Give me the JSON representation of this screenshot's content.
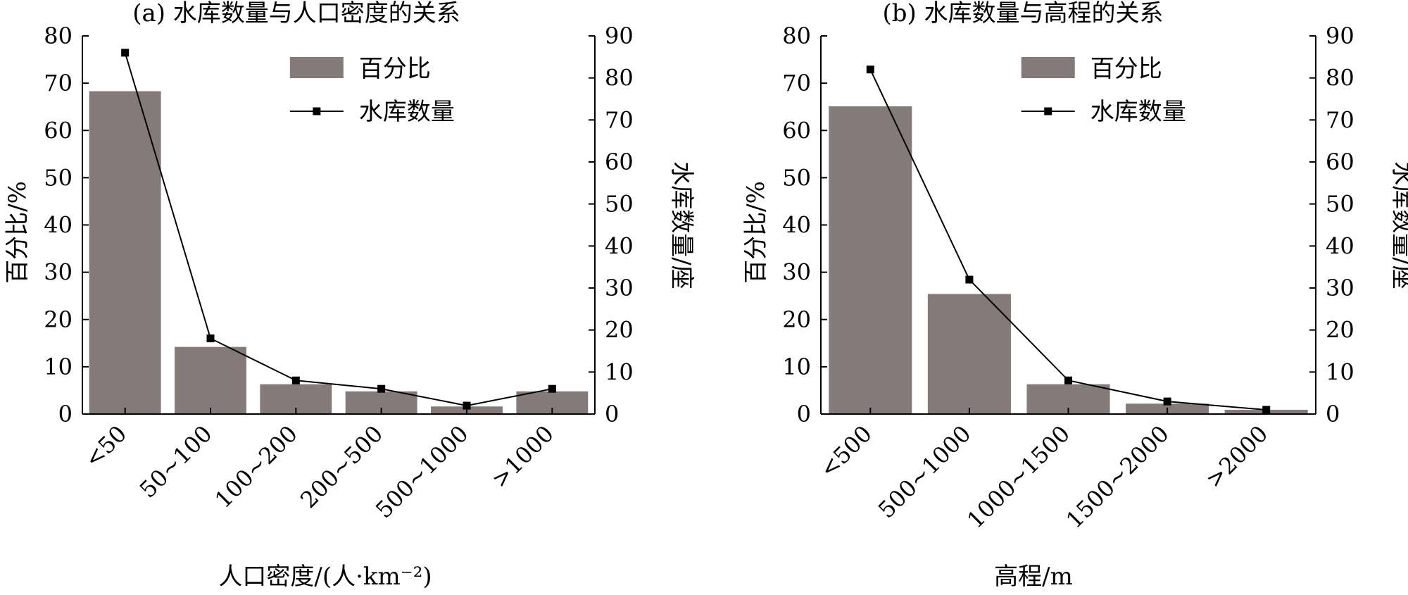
{
  "chart_data": [
    {
      "type": "bar",
      "title": "(a) 水库数量与人口密度的关系",
      "xlabel": "人口密度/(人·km⁻²)",
      "ylabel": "百分比/%",
      "ylabel_right": "水库数量/座",
      "categories": [
        "<50",
        "50~100",
        "100~200",
        "200~500",
        "500~1000",
        ">1000"
      ],
      "ylim": [
        0,
        80
      ],
      "ylim_right": [
        0,
        90
      ],
      "yticks": [
        "0",
        "10",
        "20",
        "30",
        "40",
        "50",
        "60",
        "70",
        "80"
      ],
      "yticks_right": [
        "0",
        "10",
        "20",
        "30",
        "40",
        "50",
        "60",
        "70",
        "80",
        "90"
      ],
      "legend_position": "top-right",
      "series": [
        {
          "name": "百分比",
          "kind": "bar",
          "axis": "left",
          "color": "#857a7a",
          "values": [
            68.3,
            14.2,
            6.3,
            4.8,
            1.6,
            4.8
          ]
        },
        {
          "name": "水库数量",
          "kind": "line",
          "axis": "right",
          "color": "#000000",
          "marker": "square",
          "values": [
            86,
            18,
            8,
            6,
            2,
            6
          ]
        }
      ]
    },
    {
      "type": "bar",
      "title": "(b) 水库数量与高程的关系",
      "xlabel": "高程/m",
      "ylabel": "百分比/%",
      "ylabel_right": "水库数量/座",
      "categories": [
        "<500",
        "500~1000",
        "1000~1500",
        "1500~2000",
        ">2000"
      ],
      "ylim": [
        0,
        80
      ],
      "ylim_right": [
        0,
        90
      ],
      "yticks": [
        "0",
        "10",
        "20",
        "30",
        "40",
        "50",
        "60",
        "70",
        "80"
      ],
      "yticks_right": [
        "0",
        "10",
        "20",
        "30",
        "40",
        "50",
        "60",
        "70",
        "80",
        "90"
      ],
      "legend_position": "top-right",
      "series": [
        {
          "name": "百分比",
          "kind": "bar",
          "axis": "left",
          "color": "#857a7a",
          "values": [
            65.1,
            25.4,
            6.3,
            2.2,
            0.9
          ]
        },
        {
          "name": "水库数量",
          "kind": "line",
          "axis": "right",
          "color": "#000000",
          "marker": "square",
          "values": [
            82,
            32,
            8,
            3,
            1
          ]
        }
      ]
    }
  ]
}
